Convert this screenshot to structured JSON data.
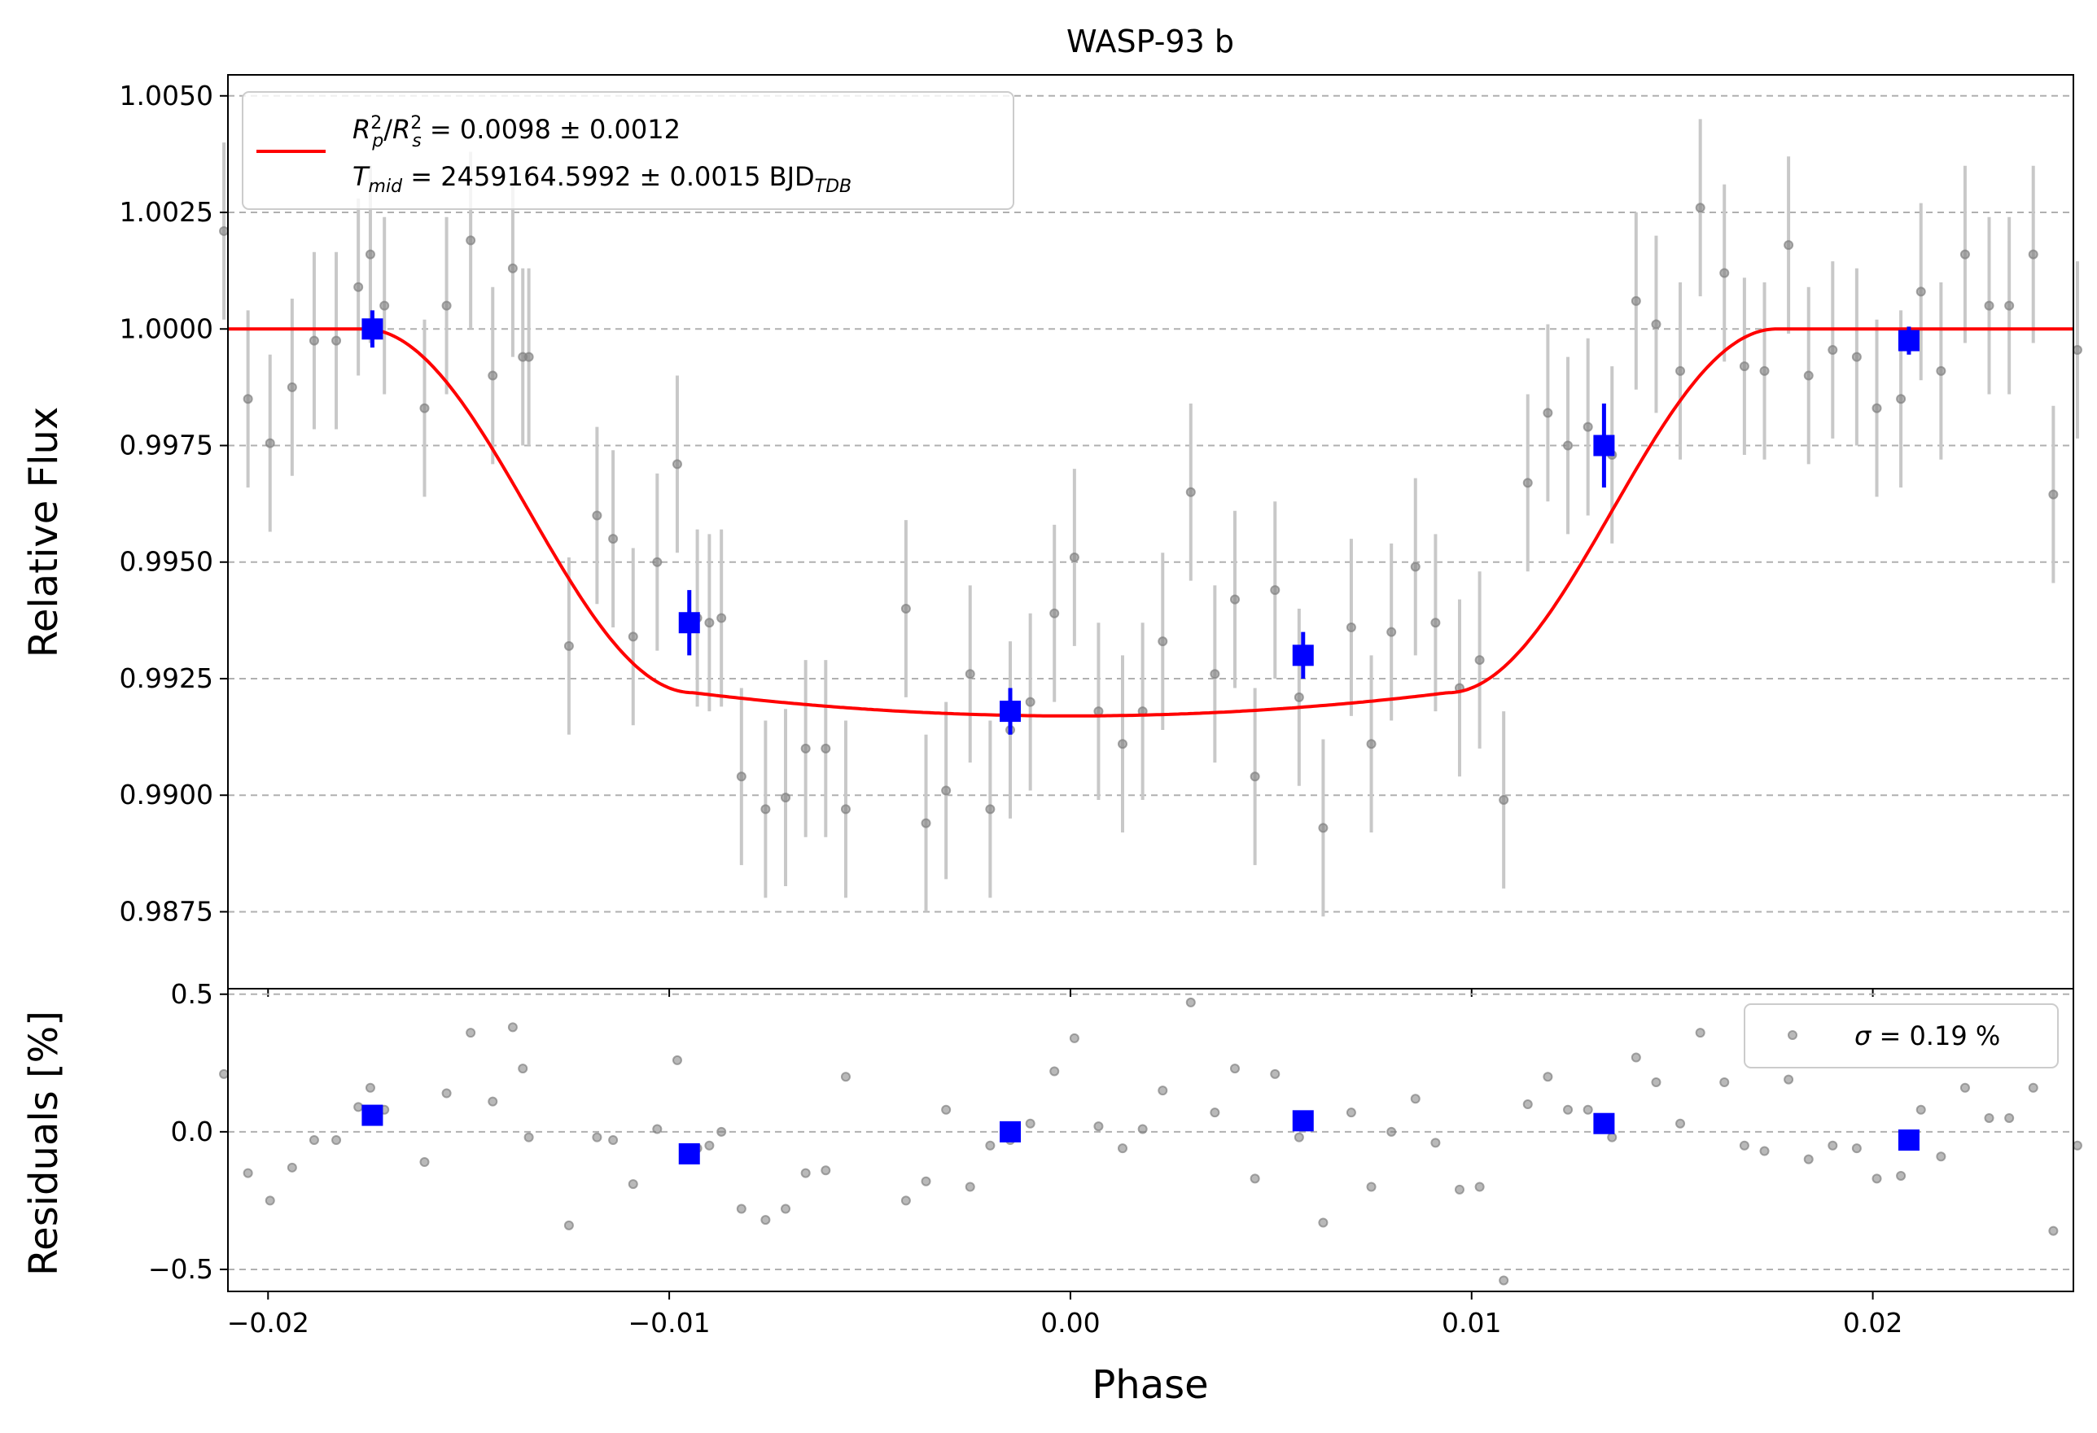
{
  "chart_data": [
    {
      "type": "scatter",
      "panel": "light-curve",
      "title": "WASP-93 b",
      "xlabel": "",
      "ylabel": "Relative Flux",
      "xlim": [
        -0.021,
        0.025
      ],
      "ylim": [
        0.98585,
        1.00545
      ],
      "xticks": [
        -0.02,
        -0.01,
        0.0,
        0.01,
        0.02
      ],
      "xtick_labels": [
        "",
        "",
        "",
        "",
        ""
      ],
      "yticks": [
        0.9875,
        0.99,
        0.9925,
        0.995,
        0.9975,
        1.0,
        1.0025,
        1.005
      ],
      "ytick_labels": [
        "0.9875",
        "0.9900",
        "0.9925",
        "0.9950",
        "0.9975",
        "1.0000",
        "1.0025",
        "1.0050"
      ],
      "grid": "horizontal dashed",
      "legend_position": "top-left",
      "legend_line1": "R²p/R²s = 0.0098 ± 0.0012",
      "legend_line1_parts": {
        "r": "R",
        "p_sup": "2",
        "p_sub": "p",
        "slash": "/",
        "s_sup": "2",
        "s_sub": "s",
        "rest": " = 0.0098 ± 0.0012"
      },
      "legend_line2": "Tmid = 2459164.5992 ± 0.0015 BJDTDB",
      "legend_line2_parts": {
        "t": "T",
        "t_sub": "mid",
        "rest": " = 2459164.5992 ± 0.0015 BJD",
        "bjd_sub": "TDB"
      },
      "series": [
        {
          "kind": "raw",
          "color": "#808080",
          "errbar_color": "#c8c8c8",
          "x": [
            -0.0211,
            -0.0205,
            -0.01995,
            -0.0194,
            -0.01885,
            -0.0183,
            -0.01775,
            -0.01745,
            -0.0171,
            -0.0161,
            -0.01555,
            -0.01495,
            -0.0144,
            -0.0139,
            -0.01365,
            -0.0135,
            -0.0125,
            -0.0118,
            -0.0114,
            -0.0109,
            -0.0103,
            -0.0098,
            -0.0093,
            -0.009,
            -0.0087,
            -0.0082,
            -0.0076,
            -0.0071,
            -0.0066,
            -0.0061,
            -0.0056,
            -0.0041,
            -0.0036,
            -0.0031,
            -0.0025,
            -0.002,
            -0.0015,
            -0.001,
            -0.0004,
            0.0001,
            0.0007,
            0.0013,
            0.0018,
            0.0023,
            0.003,
            0.0036,
            0.0041,
            0.0046,
            0.0051,
            0.0057,
            0.0063,
            0.007,
            0.0075,
            0.008,
            0.0086,
            0.0091,
            0.0097,
            0.0102,
            0.0108,
            0.0114,
            0.0119,
            0.0124,
            0.0129,
            0.0135,
            0.0141,
            0.0146,
            0.0152,
            0.0157,
            0.0163,
            0.0168,
            0.0173,
            0.0179,
            0.0184,
            0.019,
            0.0196,
            0.0201,
            0.0207,
            0.0212,
            0.0217,
            0.0223,
            0.0229,
            0.0234,
            0.024,
            0.0245,
            0.0251
          ],
          "y": [
            1.0021,
            0.9985,
            0.99755,
            0.99875,
            0.99975,
            0.99975,
            1.0009,
            1.0016,
            1.0005,
            0.9983,
            1.0005,
            1.0019,
            0.999,
            1.0013,
            0.9994,
            0.9994,
            0.9932,
            0.996,
            0.9955,
            0.9934,
            0.995,
            0.9971,
            0.9938,
            0.9937,
            0.9938,
            0.9904,
            0.9897,
            0.98995,
            0.991,
            0.991,
            0.9897,
            0.994,
            0.9894,
            0.9901,
            0.9926,
            0.9897,
            0.9914,
            0.992,
            0.9939,
            0.9951,
            0.9918,
            0.9911,
            0.9918,
            0.9933,
            0.9965,
            0.9926,
            0.9942,
            0.9904,
            0.9944,
            0.9921,
            0.9893,
            0.9936,
            0.9911,
            0.9935,
            0.9949,
            0.9937,
            0.9923,
            0.9929,
            0.9899,
            0.9967,
            0.9982,
            0.9975,
            0.9979,
            0.9973,
            1.0006,
            1.0001,
            0.9991,
            1.0026,
            1.0012,
            0.9992,
            0.9991,
            1.0018,
            0.999,
            0.99955,
            0.9994,
            0.9983,
            0.9985,
            1.0008,
            0.9991,
            1.0016,
            1.0005,
            1.0005,
            1.0016,
            0.99645,
            0.99955
          ],
          "yerr": [
            0.0019,
            0.0019,
            0.0019,
            0.0019,
            0.0019,
            0.0019,
            0.0019,
            0.0019,
            0.0019,
            0.0019,
            0.0019,
            0.0019,
            0.0019,
            0.0019,
            0.0019,
            0.0019,
            0.0019,
            0.0019,
            0.0019,
            0.0019,
            0.0019,
            0.0019,
            0.0019,
            0.0019,
            0.0019,
            0.0019,
            0.0019,
            0.0019,
            0.0019,
            0.0019,
            0.0019,
            0.0019,
            0.0019,
            0.0019,
            0.0019,
            0.0019,
            0.0019,
            0.0019,
            0.0019,
            0.0019,
            0.0019,
            0.0019,
            0.0019,
            0.0019,
            0.0019,
            0.0019,
            0.0019,
            0.0019,
            0.0019,
            0.0019,
            0.0019,
            0.0019,
            0.0019,
            0.0019,
            0.0019,
            0.0019,
            0.0019,
            0.0019,
            0.0019,
            0.0019,
            0.0019,
            0.0019,
            0.0019,
            0.0019,
            0.0019,
            0.0019,
            0.0019,
            0.0019,
            0.0019,
            0.0019,
            0.0019,
            0.0019,
            0.0019,
            0.0019,
            0.0019,
            0.0019,
            0.0019,
            0.0019,
            0.0019,
            0.0019,
            0.0019,
            0.0019,
            0.0019,
            0.0019,
            0.0019
          ]
        },
        {
          "kind": "binned",
          "color": "#0000ff",
          "x": [
            -0.0174,
            -0.0095,
            -0.0015,
            0.0058,
            0.0133,
            0.0209
          ],
          "y": [
            1.0,
            0.9937,
            0.9918,
            0.993,
            0.9975,
            0.99975
          ],
          "yerr": [
            0.0004,
            0.0007,
            0.0005,
            0.0005,
            0.0009,
            0.0003
          ]
        },
        {
          "kind": "model",
          "color": "#ff0000",
          "depth": 0.0083,
          "t14_half": 0.0176,
          "ingress": 0.0082
        }
      ]
    },
    {
      "type": "scatter",
      "panel": "residuals",
      "title": "",
      "xlabel": "Phase",
      "ylabel": "Residuals [%]",
      "xlim": [
        -0.021,
        0.025
      ],
      "ylim": [
        -0.58,
        0.52
      ],
      "xticks": [
        -0.02,
        -0.01,
        0.0,
        0.01,
        0.02
      ],
      "xtick_labels": [
        "−0.02",
        "−0.01",
        "0.00",
        "0.01",
        "0.02"
      ],
      "yticks": [
        -0.5,
        0.0,
        0.5
      ],
      "ytick_labels": [
        "−0.5",
        "0.0",
        "0.5"
      ],
      "grid": "horizontal dashed",
      "legend_position": "top-right",
      "legend_label": "σ = 0.19 %",
      "legend_parts": {
        "sigma": "σ",
        "rest": " = 0.19 %"
      },
      "series": [
        {
          "kind": "raw",
          "color": "#808080",
          "x": [
            -0.0211,
            -0.0205,
            -0.01995,
            -0.0194,
            -0.01885,
            -0.0183,
            -0.01775,
            -0.01745,
            -0.0171,
            -0.0161,
            -0.01555,
            -0.01495,
            -0.0144,
            -0.0139,
            -0.01365,
            -0.0135,
            -0.0125,
            -0.0118,
            -0.0114,
            -0.0109,
            -0.0103,
            -0.0098,
            -0.0093,
            -0.009,
            -0.0087,
            -0.0082,
            -0.0076,
            -0.0071,
            -0.0066,
            -0.0061,
            -0.0056,
            -0.0041,
            -0.0036,
            -0.0031,
            -0.0025,
            -0.002,
            -0.0015,
            -0.001,
            -0.0004,
            0.0001,
            0.0007,
            0.0013,
            0.0018,
            0.0023,
            0.003,
            0.0036,
            0.0041,
            0.0046,
            0.0051,
            0.0057,
            0.0063,
            0.007,
            0.0075,
            0.008,
            0.0086,
            0.0091,
            0.0097,
            0.0102,
            0.0108,
            0.0114,
            0.0119,
            0.0124,
            0.0129,
            0.0135,
            0.0141,
            0.0146,
            0.0152,
            0.0157,
            0.0163,
            0.0168,
            0.0173,
            0.0179,
            0.0184,
            0.019,
            0.0196,
            0.0201,
            0.0207,
            0.0212,
            0.0217,
            0.0223,
            0.0229,
            0.0234,
            0.024,
            0.0245,
            0.0251
          ],
          "y": [
            0.21,
            -0.15,
            -0.25,
            -0.13,
            -0.03,
            -0.03,
            0.09,
            0.16,
            0.08,
            -0.11,
            0.14,
            0.36,
            0.11,
            0.38,
            0.23,
            -0.02,
            -0.34,
            -0.02,
            -0.03,
            -0.19,
            0.01,
            0.26,
            -0.06,
            -0.05,
            0.0,
            -0.28,
            -0.32,
            -0.28,
            -0.15,
            -0.14,
            0.2,
            -0.25,
            -0.18,
            0.08,
            -0.2,
            -0.05,
            -0.03,
            0.03,
            0.22,
            0.34,
            0.02,
            -0.06,
            0.01,
            0.15,
            0.47,
            0.07,
            0.23,
            -0.17,
            0.21,
            -0.02,
            -0.33,
            0.07,
            -0.2,
            0.0,
            0.12,
            -0.04,
            -0.21,
            -0.2,
            -0.54,
            0.1,
            0.2,
            0.08,
            0.08,
            -0.02,
            0.27,
            0.18,
            0.03,
            0.36,
            0.18,
            -0.05,
            -0.07,
            0.19,
            -0.1,
            -0.05,
            -0.06,
            -0.17,
            -0.16,
            0.08,
            -0.09,
            0.16,
            0.05,
            0.05,
            0.16,
            -0.36,
            -0.05
          ]
        },
        {
          "kind": "binned",
          "color": "#0000ff",
          "x": [
            -0.0174,
            -0.0095,
            -0.0015,
            0.0058,
            0.0133,
            0.0209
          ],
          "y": [
            0.06,
            -0.08,
            0.0,
            0.04,
            0.03,
            -0.03
          ]
        }
      ]
    }
  ]
}
